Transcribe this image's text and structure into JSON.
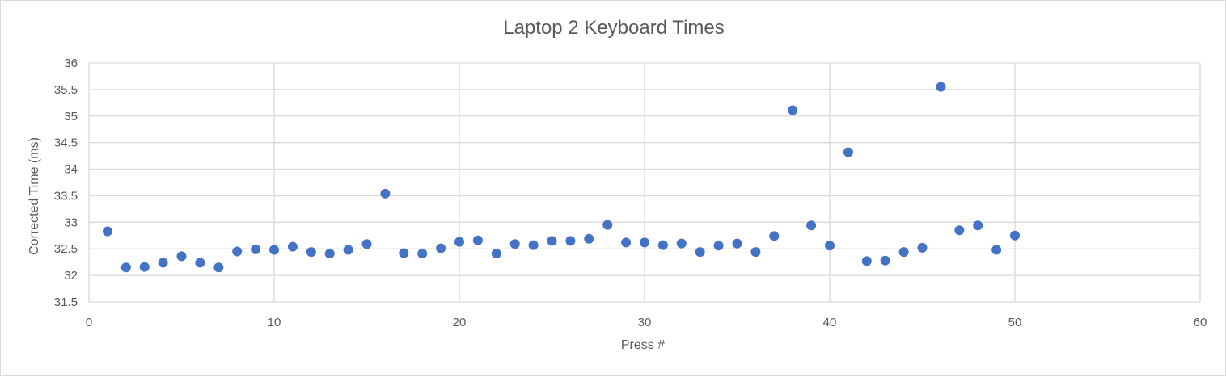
{
  "chart_data": {
    "type": "scatter",
    "title": "Laptop 2 Keyboard Times",
    "xlabel": "Press #",
    "ylabel": "Corrected Time (ms)",
    "xlim": [
      0,
      60
    ],
    "ylim": [
      31.5,
      36
    ],
    "x_ticks": [
      "0",
      "10",
      "20",
      "30",
      "40",
      "50",
      "60"
    ],
    "y_ticks": [
      "31.5",
      "32",
      "32.5",
      "33",
      "33.5",
      "34",
      "34.5",
      "35",
      "35.5",
      "36"
    ],
    "grid": true,
    "legend": "none",
    "marker_color": "#4472c4",
    "points": [
      {
        "x": 1,
        "y": 32.83
      },
      {
        "x": 2,
        "y": 32.15
      },
      {
        "x": 3,
        "y": 32.16
      },
      {
        "x": 4,
        "y": 32.24
      },
      {
        "x": 5,
        "y": 32.36
      },
      {
        "x": 6,
        "y": 32.24
      },
      {
        "x": 7,
        "y": 32.15
      },
      {
        "x": 8,
        "y": 32.45
      },
      {
        "x": 9,
        "y": 32.49
      },
      {
        "x": 10,
        "y": 32.48
      },
      {
        "x": 11,
        "y": 32.54
      },
      {
        "x": 12,
        "y": 32.44
      },
      {
        "x": 13,
        "y": 32.41
      },
      {
        "x": 14,
        "y": 32.48
      },
      {
        "x": 15,
        "y": 32.59
      },
      {
        "x": 16,
        "y": 33.54
      },
      {
        "x": 17,
        "y": 32.42
      },
      {
        "x": 18,
        "y": 32.41
      },
      {
        "x": 19,
        "y": 32.51
      },
      {
        "x": 20,
        "y": 32.63
      },
      {
        "x": 21,
        "y": 32.66
      },
      {
        "x": 22,
        "y": 32.41
      },
      {
        "x": 23,
        "y": 32.59
      },
      {
        "x": 24,
        "y": 32.57
      },
      {
        "x": 25,
        "y": 32.65
      },
      {
        "x": 26,
        "y": 32.65
      },
      {
        "x": 27,
        "y": 32.69
      },
      {
        "x": 28,
        "y": 32.95
      },
      {
        "x": 29,
        "y": 32.62
      },
      {
        "x": 30,
        "y": 32.62
      },
      {
        "x": 31,
        "y": 32.57
      },
      {
        "x": 32,
        "y": 32.6
      },
      {
        "x": 33,
        "y": 32.44
      },
      {
        "x": 34,
        "y": 32.56
      },
      {
        "x": 35,
        "y": 32.6
      },
      {
        "x": 36,
        "y": 32.44
      },
      {
        "x": 37,
        "y": 32.74
      },
      {
        "x": 38,
        "y": 35.11
      },
      {
        "x": 39,
        "y": 32.94
      },
      {
        "x": 40,
        "y": 32.56
      },
      {
        "x": 41,
        "y": 34.32
      },
      {
        "x": 42,
        "y": 32.27
      },
      {
        "x": 43,
        "y": 32.28
      },
      {
        "x": 44,
        "y": 32.44
      },
      {
        "x": 45,
        "y": 32.52
      },
      {
        "x": 46,
        "y": 35.55
      },
      {
        "x": 47,
        "y": 32.85
      },
      {
        "x": 48,
        "y": 32.94
      },
      {
        "x": 49,
        "y": 32.48
      },
      {
        "x": 50,
        "y": 32.75
      }
    ]
  }
}
